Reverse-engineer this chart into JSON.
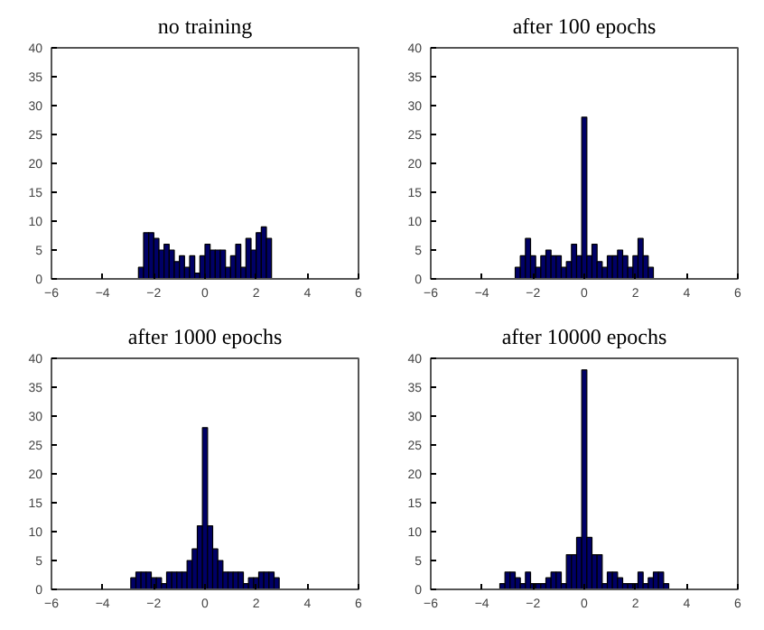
{
  "chart_data": [
    {
      "type": "histogram",
      "title": "no training",
      "color": "#000066",
      "bins": [
        -2.6,
        -2.4,
        -2.2,
        -2.0,
        -1.8,
        -1.6,
        -1.4,
        -1.2,
        -1.0,
        -0.8,
        -0.6,
        -0.4,
        -0.2,
        0.0,
        0.2,
        0.4,
        0.6,
        0.8,
        1.0,
        1.2,
        1.4,
        1.6,
        1.8,
        2.0,
        2.2,
        2.4,
        2.6
      ],
      "values": [
        2,
        8,
        8,
        7,
        5,
        6,
        5,
        3,
        4,
        2,
        4,
        1,
        4,
        6,
        5,
        5,
        5,
        2,
        4,
        6,
        2,
        7,
        5,
        8,
        9,
        7
      ],
      "xlim": [
        -6,
        6
      ],
      "ylim": [
        0,
        40
      ],
      "xticks": [
        -6,
        -4,
        -2,
        0,
        2,
        4,
        6
      ],
      "yticks": [
        0,
        5,
        10,
        15,
        20,
        25,
        30,
        35,
        40
      ],
      "grid": false
    },
    {
      "type": "histogram",
      "title": "after 100 epochs",
      "color": "#000066",
      "bins": [
        -2.7,
        -2.5,
        -2.3,
        -2.1,
        -1.9,
        -1.7,
        -1.5,
        -1.3,
        -1.1,
        -0.9,
        -0.7,
        -0.5,
        -0.3,
        -0.1,
        0.1,
        0.3,
        0.5,
        0.7,
        0.9,
        1.1,
        1.3,
        1.5,
        1.7,
        1.9,
        2.1,
        2.3,
        2.5,
        2.7
      ],
      "values": [
        2,
        4,
        7,
        4,
        2,
        4,
        5,
        4,
        4,
        2,
        3,
        6,
        4,
        28,
        4,
        6,
        3,
        2,
        4,
        4,
        5,
        4,
        2,
        4,
        7,
        4,
        2
      ],
      "xlim": [
        -6,
        6
      ],
      "ylim": [
        0,
        40
      ],
      "xticks": [
        -6,
        -4,
        -2,
        0,
        2,
        4,
        6
      ],
      "yticks": [
        0,
        5,
        10,
        15,
        20,
        25,
        30,
        35,
        40
      ],
      "grid": false
    },
    {
      "type": "histogram",
      "title": "after 1000 epochs",
      "color": "#000066",
      "bins": [
        -2.9,
        -2.7,
        -2.5,
        -2.3,
        -2.1,
        -1.9,
        -1.7,
        -1.5,
        -1.3,
        -1.1,
        -0.9,
        -0.7,
        -0.5,
        -0.3,
        -0.1,
        0.1,
        0.3,
        0.5,
        0.7,
        0.9,
        1.1,
        1.3,
        1.5,
        1.7,
        1.9,
        2.1,
        2.3,
        2.5,
        2.7,
        2.9
      ],
      "values": [
        2,
        3,
        3,
        3,
        2,
        2,
        1,
        3,
        3,
        3,
        3,
        5,
        7,
        11,
        28,
        11,
        7,
        5,
        3,
        3,
        3,
        3,
        1,
        2,
        2,
        3,
        3,
        3,
        2
      ],
      "xlim": [
        -6,
        6
      ],
      "ylim": [
        0,
        40
      ],
      "xticks": [
        -6,
        -4,
        -2,
        0,
        2,
        4,
        6
      ],
      "yticks": [
        0,
        5,
        10,
        15,
        20,
        25,
        30,
        35,
        40
      ],
      "grid": false
    },
    {
      "type": "histogram",
      "title": "after 10000 epochs",
      "color": "#000066",
      "bins": [
        -3.3,
        -3.1,
        -2.9,
        -2.7,
        -2.5,
        -2.3,
        -2.1,
        -1.9,
        -1.7,
        -1.5,
        -1.3,
        -1.1,
        -0.9,
        -0.7,
        -0.5,
        -0.3,
        -0.1,
        0.1,
        0.3,
        0.5,
        0.7,
        0.9,
        1.1,
        1.3,
        1.5,
        1.7,
        1.9,
        2.1,
        2.3,
        2.5,
        2.7,
        2.9,
        3.1,
        3.3
      ],
      "values": [
        1,
        3,
        3,
        2,
        1,
        3,
        1,
        1,
        1,
        2,
        3,
        3,
        1,
        6,
        6,
        9,
        38,
        9,
        6,
        6,
        1,
        3,
        3,
        2,
        1,
        1,
        1,
        3,
        1,
        2,
        3,
        3,
        1
      ],
      "xlim": [
        -6,
        6
      ],
      "ylim": [
        0,
        40
      ],
      "xticks": [
        -6,
        -4,
        -2,
        0,
        2,
        4,
        6
      ],
      "yticks": [
        0,
        5,
        10,
        15,
        20,
        25,
        30,
        35,
        40
      ],
      "grid": false
    }
  ]
}
